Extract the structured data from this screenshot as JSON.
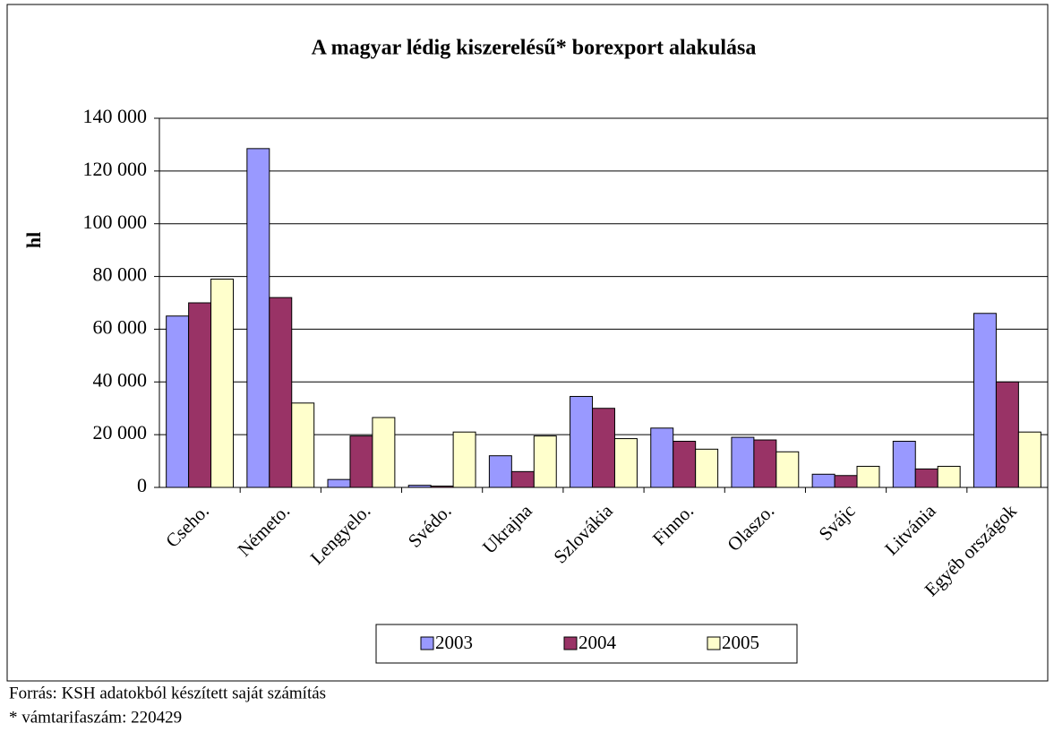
{
  "chart_data": {
    "type": "bar",
    "title": "A magyar lédig kiszerelésű* borexport alakulása",
    "y_label": "hl",
    "categories": [
      "Cseho.",
      "Németo.",
      "Lengyelo.",
      "Svédo.",
      "Ukrajna",
      "Szlovákia",
      "Finno.",
      "Olaszo.",
      "Svájc",
      "Litvánia",
      "Egyéb országok"
    ],
    "series": [
      {
        "name": "2003",
        "color": "#9999ff",
        "values": [
          65000,
          128500,
          3000,
          800,
          12000,
          34500,
          22500,
          19000,
          5000,
          17500,
          66000
        ]
      },
      {
        "name": "2004",
        "color": "#993366",
        "values": [
          70000,
          72000,
          19500,
          500,
          6000,
          30000,
          17500,
          18000,
          4500,
          7000,
          40000
        ]
      },
      {
        "name": "2005",
        "color": "#ffffcc",
        "values": [
          79000,
          32000,
          26500,
          21000,
          19500,
          18500,
          14500,
          13500,
          8000,
          8000,
          21000
        ]
      }
    ],
    "ylim": [
      0,
      140000
    ],
    "yticks": [
      0,
      {
        "value": 20000,
        "label": "20 000"
      },
      {
        "value": 40000,
        "label": "40 000"
      },
      {
        "value": 60000,
        "label": "60 000"
      },
      {
        "value": 80000,
        "label": "80 000"
      },
      {
        "value": 100000,
        "label": "100 000"
      },
      {
        "value": 120000,
        "label": "120 000"
      },
      {
        "value": 140000,
        "label": "140 000"
      }
    ],
    "grid": true,
    "legend": "bottom",
    "notes": [
      "Forrás: KSH adatokból készített saját számítás",
      "* vámtarifaszám: 220429"
    ]
  }
}
